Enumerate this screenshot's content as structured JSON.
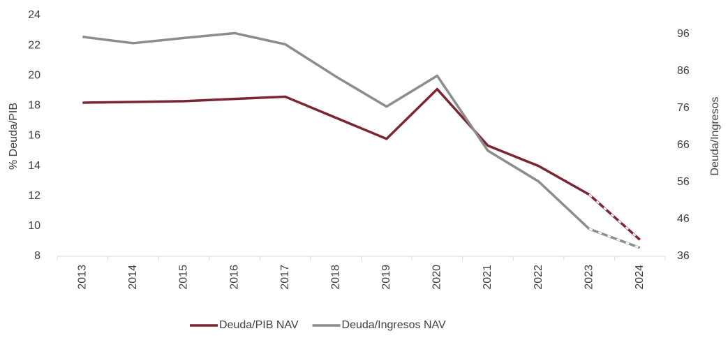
{
  "chart_data": {
    "type": "line",
    "y_label": "% Deuda/PIB",
    "y2_label": "Deuda/Ingresos",
    "categories": [
      "2013",
      "2014",
      "2015",
      "2016",
      "2017",
      "2018",
      "2019",
      "2020",
      "2021",
      "2022",
      "2023",
      "2024"
    ],
    "series": [
      {
        "name": "Deuda/PIB NAV",
        "color": "#7b2434",
        "values": [
          18.2,
          18.25,
          18.3,
          18.45,
          18.6,
          17.2,
          15.8,
          19.1,
          15.35,
          14.0,
          12.1,
          9.1
        ]
      },
      {
        "name": "Deuda/Ingresos NAV",
        "color": "#8c8c8c",
        "axis": "y2",
        "values": [
          95.2,
          93.5,
          94.9,
          96.2,
          93.2,
          84.5,
          76.4,
          84.7,
          64.5,
          56.2,
          43.4,
          38.3
        ]
      }
    ],
    "ylim": [
      8,
      24
    ],
    "yticks": [
      8,
      10,
      12,
      14,
      16,
      18,
      20,
      22,
      24
    ],
    "y2lim": [
      36,
      101
    ],
    "y2ticks": [
      36,
      46,
      56,
      66,
      76,
      86,
      96
    ],
    "legend": "bottom"
  }
}
